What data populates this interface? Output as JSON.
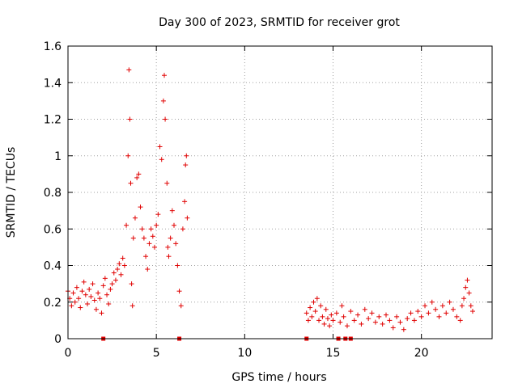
{
  "chart_data": {
    "type": "scatter",
    "title": "Day 300 of 2023, SRMTID for receiver grot",
    "xlabel": "GPS time / hours",
    "ylabel": "SRMTID / TECUs",
    "xlim": [
      0,
      24
    ],
    "ylim": [
      0,
      1.6
    ],
    "x_ticks": [
      0,
      5,
      10,
      15,
      20
    ],
    "x_tick_labels": [
      "0",
      "5",
      "10",
      "15",
      "20"
    ],
    "y_ticks": [
      0,
      0.2,
      0.4,
      0.6,
      0.8,
      1.0,
      1.2,
      1.4,
      1.6
    ],
    "y_tick_labels": [
      "0",
      "0.2",
      "0.4",
      "0.6",
      "0.8",
      "1",
      "1.2",
      "1.4",
      "1.6"
    ],
    "grid": true,
    "marker": "+",
    "color": "#e00000",
    "gap_markers_x": [
      2.0,
      6.3,
      13.5,
      15.3,
      15.7,
      16.0
    ],
    "series": [
      {
        "name": "SRMTID",
        "points": [
          [
            0.0,
            0.26
          ],
          [
            0.1,
            0.22
          ],
          [
            0.2,
            0.18
          ],
          [
            0.3,
            0.25
          ],
          [
            0.4,
            0.2
          ],
          [
            0.5,
            0.28
          ],
          [
            0.6,
            0.22
          ],
          [
            0.7,
            0.17
          ],
          [
            0.8,
            0.26
          ],
          [
            0.9,
            0.31
          ],
          [
            1.0,
            0.24
          ],
          [
            1.1,
            0.19
          ],
          [
            1.2,
            0.27
          ],
          [
            1.3,
            0.23
          ],
          [
            1.4,
            0.3
          ],
          [
            1.5,
            0.21
          ],
          [
            1.6,
            0.16
          ],
          [
            1.7,
            0.25
          ],
          [
            1.8,
            0.22
          ],
          [
            1.9,
            0.14
          ],
          [
            2.0,
            0.29
          ],
          [
            2.1,
            0.33
          ],
          [
            2.2,
            0.24
          ],
          [
            2.3,
            0.19
          ],
          [
            2.4,
            0.27
          ],
          [
            2.5,
            0.3
          ],
          [
            2.6,
            0.36
          ],
          [
            2.7,
            0.32
          ],
          [
            2.8,
            0.38
          ],
          [
            2.9,
            0.41
          ],
          [
            3.0,
            0.35
          ],
          [
            3.1,
            0.44
          ],
          [
            3.2,
            0.4
          ],
          [
            3.3,
            0.62
          ],
          [
            3.4,
            1.0
          ],
          [
            3.45,
            1.47
          ],
          [
            3.5,
            1.2
          ],
          [
            3.55,
            0.85
          ],
          [
            3.6,
            0.3
          ],
          [
            3.65,
            0.18
          ],
          [
            3.7,
            0.55
          ],
          [
            3.8,
            0.66
          ],
          [
            3.9,
            0.88
          ],
          [
            4.0,
            0.9
          ],
          [
            4.1,
            0.72
          ],
          [
            4.2,
            0.6
          ],
          [
            4.3,
            0.55
          ],
          [
            4.4,
            0.45
          ],
          [
            4.5,
            0.38
          ],
          [
            4.6,
            0.52
          ],
          [
            4.7,
            0.6
          ],
          [
            4.8,
            0.56
          ],
          [
            4.9,
            0.5
          ],
          [
            5.0,
            0.62
          ],
          [
            5.1,
            0.68
          ],
          [
            5.2,
            1.05
          ],
          [
            5.3,
            0.98
          ],
          [
            5.4,
            1.3
          ],
          [
            5.45,
            1.44
          ],
          [
            5.5,
            1.2
          ],
          [
            5.6,
            0.85
          ],
          [
            5.65,
            0.5
          ],
          [
            5.7,
            0.45
          ],
          [
            5.8,
            0.55
          ],
          [
            5.9,
            0.7
          ],
          [
            6.0,
            0.62
          ],
          [
            6.1,
            0.52
          ],
          [
            6.2,
            0.4
          ],
          [
            6.3,
            0.26
          ],
          [
            6.4,
            0.18
          ],
          [
            6.5,
            0.6
          ],
          [
            6.6,
            0.75
          ],
          [
            6.65,
            0.95
          ],
          [
            6.7,
            1.0
          ],
          [
            6.75,
            0.66
          ],
          [
            13.5,
            0.14
          ],
          [
            13.6,
            0.1
          ],
          [
            13.7,
            0.17
          ],
          [
            13.8,
            0.12
          ],
          [
            13.9,
            0.2
          ],
          [
            14.0,
            0.15
          ],
          [
            14.1,
            0.22
          ],
          [
            14.2,
            0.1
          ],
          [
            14.3,
            0.18
          ],
          [
            14.4,
            0.12
          ],
          [
            14.5,
            0.08
          ],
          [
            14.6,
            0.16
          ],
          [
            14.7,
            0.11
          ],
          [
            14.8,
            0.07
          ],
          [
            14.9,
            0.13
          ],
          [
            15.0,
            0.1
          ],
          [
            15.2,
            0.14
          ],
          [
            15.4,
            0.09
          ],
          [
            15.5,
            0.18
          ],
          [
            15.6,
            0.12
          ],
          [
            15.8,
            0.07
          ],
          [
            16.0,
            0.15
          ],
          [
            16.2,
            0.1
          ],
          [
            16.4,
            0.13
          ],
          [
            16.6,
            0.08
          ],
          [
            16.8,
            0.16
          ],
          [
            17.0,
            0.11
          ],
          [
            17.2,
            0.14
          ],
          [
            17.4,
            0.09
          ],
          [
            17.6,
            0.12
          ],
          [
            17.8,
            0.08
          ],
          [
            18.0,
            0.13
          ],
          [
            18.2,
            0.1
          ],
          [
            18.4,
            0.06
          ],
          [
            18.6,
            0.12
          ],
          [
            18.8,
            0.09
          ],
          [
            19.0,
            0.05
          ],
          [
            19.2,
            0.11
          ],
          [
            19.4,
            0.14
          ],
          [
            19.6,
            0.1
          ],
          [
            19.8,
            0.15
          ],
          [
            20.0,
            0.12
          ],
          [
            20.2,
            0.18
          ],
          [
            20.4,
            0.14
          ],
          [
            20.6,
            0.2
          ],
          [
            20.8,
            0.16
          ],
          [
            21.0,
            0.12
          ],
          [
            21.2,
            0.18
          ],
          [
            21.4,
            0.14
          ],
          [
            21.6,
            0.2
          ],
          [
            21.8,
            0.16
          ],
          [
            22.0,
            0.12
          ],
          [
            22.2,
            0.1
          ],
          [
            22.3,
            0.18
          ],
          [
            22.4,
            0.22
          ],
          [
            22.5,
            0.28
          ],
          [
            22.6,
            0.32
          ],
          [
            22.7,
            0.25
          ],
          [
            22.8,
            0.18
          ],
          [
            22.9,
            0.15
          ]
        ]
      }
    ]
  }
}
